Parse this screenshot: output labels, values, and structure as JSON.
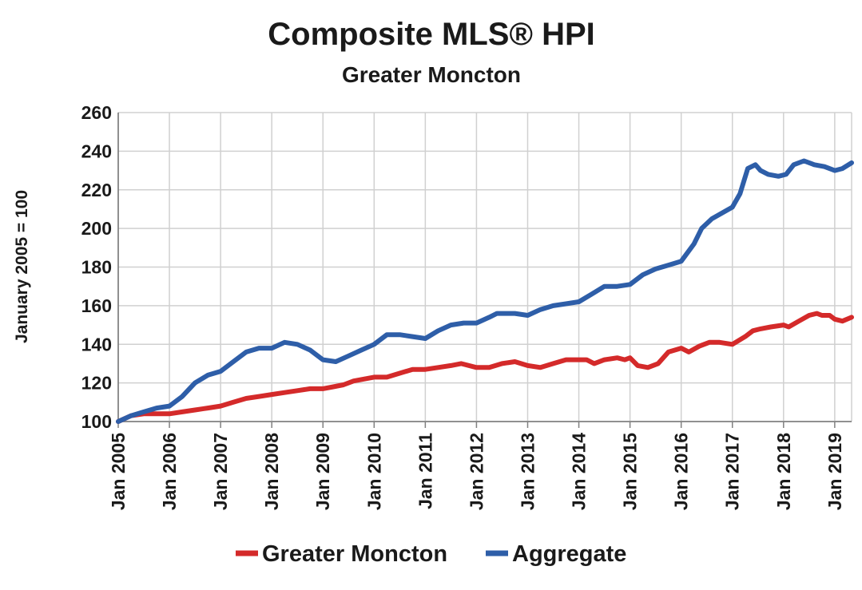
{
  "chart_data": {
    "type": "line",
    "title": "Composite MLS® HPI",
    "subtitle": "Greater Moncton",
    "xlabel": "",
    "ylabel": "January 2005 = 100",
    "ylim": [
      100,
      260
    ],
    "yticks": [
      100,
      120,
      140,
      160,
      180,
      200,
      220,
      240,
      260
    ],
    "xlim": [
      2005.0,
      2019.33
    ],
    "xticks": [
      {
        "x": 2005,
        "label": "Jan 2005"
      },
      {
        "x": 2006,
        "label": "Jan 2006"
      },
      {
        "x": 2007,
        "label": "Jan 2007"
      },
      {
        "x": 2008,
        "label": "Jan 2008"
      },
      {
        "x": 2009,
        "label": "Jan 2009"
      },
      {
        "x": 2010,
        "label": "Jan 2010"
      },
      {
        "x": 2011,
        "label": "Jan 2011"
      },
      {
        "x": 2012,
        "label": "Jan 2012"
      },
      {
        "x": 2013,
        "label": "Jan 2013"
      },
      {
        "x": 2014,
        "label": "Jan 2014"
      },
      {
        "x": 2015,
        "label": "Jan 2015"
      },
      {
        "x": 2016,
        "label": "Jan 2016"
      },
      {
        "x": 2017,
        "label": "Jan 2017"
      },
      {
        "x": 2018,
        "label": "Jan 2018"
      },
      {
        "x": 2019,
        "label": "Jan 2019"
      }
    ],
    "grid": true,
    "legend_position": "bottom",
    "series": [
      {
        "name": "Greater Moncton",
        "color": "#d42a2a",
        "points": [
          [
            2005.0,
            100
          ],
          [
            2005.25,
            103
          ],
          [
            2005.5,
            104
          ],
          [
            2005.75,
            104
          ],
          [
            2006.0,
            104
          ],
          [
            2006.25,
            105
          ],
          [
            2006.5,
            106
          ],
          [
            2006.75,
            107
          ],
          [
            2007.0,
            108
          ],
          [
            2007.25,
            110
          ],
          [
            2007.5,
            112
          ],
          [
            2007.75,
            113
          ],
          [
            2008.0,
            114
          ],
          [
            2008.25,
            115
          ],
          [
            2008.5,
            116
          ],
          [
            2008.75,
            117
          ],
          [
            2009.0,
            117
          ],
          [
            2009.2,
            118
          ],
          [
            2009.4,
            119
          ],
          [
            2009.6,
            121
          ],
          [
            2009.8,
            122
          ],
          [
            2010.0,
            123
          ],
          [
            2010.25,
            123
          ],
          [
            2010.5,
            125
          ],
          [
            2010.75,
            127
          ],
          [
            2011.0,
            127
          ],
          [
            2011.25,
            128
          ],
          [
            2011.5,
            129
          ],
          [
            2011.7,
            130
          ],
          [
            2012.0,
            128
          ],
          [
            2012.25,
            128
          ],
          [
            2012.5,
            130
          ],
          [
            2012.75,
            131
          ],
          [
            2013.0,
            129
          ],
          [
            2013.25,
            128
          ],
          [
            2013.5,
            130
          ],
          [
            2013.75,
            132
          ],
          [
            2014.0,
            132
          ],
          [
            2014.15,
            132
          ],
          [
            2014.3,
            130
          ],
          [
            2014.5,
            132
          ],
          [
            2014.75,
            133
          ],
          [
            2014.9,
            132
          ],
          [
            2015.0,
            133
          ],
          [
            2015.15,
            129
          ],
          [
            2015.35,
            128
          ],
          [
            2015.55,
            130
          ],
          [
            2015.75,
            136
          ],
          [
            2016.0,
            138
          ],
          [
            2016.15,
            136
          ],
          [
            2016.35,
            139
          ],
          [
            2016.55,
            141
          ],
          [
            2016.75,
            141
          ],
          [
            2017.0,
            140
          ],
          [
            2017.25,
            144
          ],
          [
            2017.4,
            147
          ],
          [
            2017.55,
            148
          ],
          [
            2017.75,
            149
          ],
          [
            2018.0,
            150
          ],
          [
            2018.1,
            149
          ],
          [
            2018.3,
            152
          ],
          [
            2018.5,
            155
          ],
          [
            2018.65,
            156
          ],
          [
            2018.75,
            155
          ],
          [
            2018.9,
            155
          ],
          [
            2019.0,
            153
          ],
          [
            2019.15,
            152
          ],
          [
            2019.33,
            154
          ]
        ]
      },
      {
        "name": "Aggregate",
        "color": "#2e5ea8",
        "points": [
          [
            2005.0,
            100
          ],
          [
            2005.25,
            103
          ],
          [
            2005.5,
            105
          ],
          [
            2005.75,
            107
          ],
          [
            2006.0,
            108
          ],
          [
            2006.25,
            113
          ],
          [
            2006.5,
            120
          ],
          [
            2006.75,
            124
          ],
          [
            2007.0,
            126
          ],
          [
            2007.25,
            131
          ],
          [
            2007.5,
            136
          ],
          [
            2007.75,
            138
          ],
          [
            2008.0,
            138
          ],
          [
            2008.25,
            141
          ],
          [
            2008.5,
            140
          ],
          [
            2008.75,
            137
          ],
          [
            2009.0,
            132
          ],
          [
            2009.25,
            131
          ],
          [
            2009.5,
            134
          ],
          [
            2009.75,
            137
          ],
          [
            2010.0,
            140
          ],
          [
            2010.25,
            145
          ],
          [
            2010.5,
            145
          ],
          [
            2010.75,
            144
          ],
          [
            2011.0,
            143
          ],
          [
            2011.25,
            147
          ],
          [
            2011.5,
            150
          ],
          [
            2011.75,
            151
          ],
          [
            2012.0,
            151
          ],
          [
            2012.25,
            154
          ],
          [
            2012.4,
            156
          ],
          [
            2012.75,
            156
          ],
          [
            2013.0,
            155
          ],
          [
            2013.25,
            158
          ],
          [
            2013.5,
            160
          ],
          [
            2013.75,
            161
          ],
          [
            2014.0,
            162
          ],
          [
            2014.25,
            166
          ],
          [
            2014.5,
            170
          ],
          [
            2014.75,
            170
          ],
          [
            2015.0,
            171
          ],
          [
            2015.25,
            176
          ],
          [
            2015.5,
            179
          ],
          [
            2015.75,
            181
          ],
          [
            2016.0,
            183
          ],
          [
            2016.25,
            192
          ],
          [
            2016.4,
            200
          ],
          [
            2016.6,
            205
          ],
          [
            2016.8,
            208
          ],
          [
            2017.0,
            211
          ],
          [
            2017.15,
            218
          ],
          [
            2017.3,
            231
          ],
          [
            2017.45,
            233
          ],
          [
            2017.55,
            230
          ],
          [
            2017.7,
            228
          ],
          [
            2017.9,
            227
          ],
          [
            2018.05,
            228
          ],
          [
            2018.2,
            233
          ],
          [
            2018.4,
            235
          ],
          [
            2018.6,
            233
          ],
          [
            2018.8,
            232
          ],
          [
            2019.0,
            230
          ],
          [
            2019.15,
            231
          ],
          [
            2019.33,
            234
          ]
        ]
      }
    ]
  }
}
